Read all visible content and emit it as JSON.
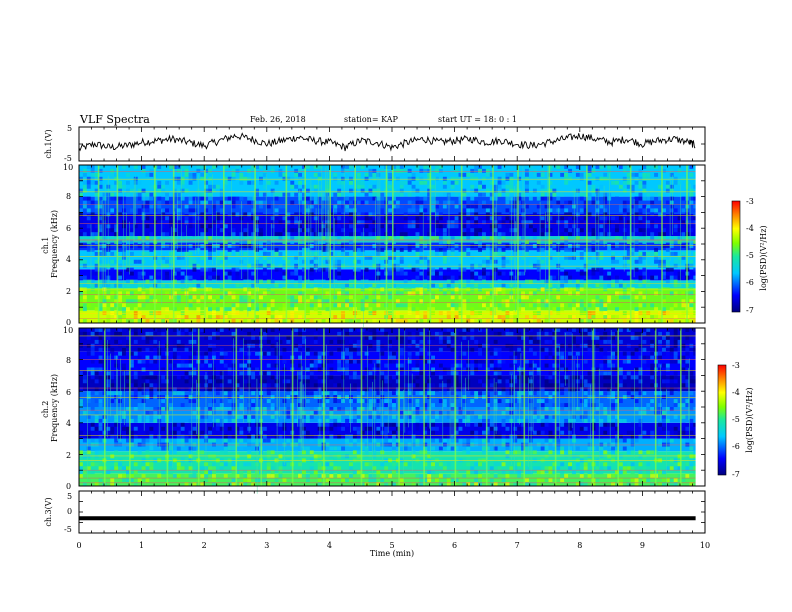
{
  "header": {
    "title": "VLF Spectra",
    "date": "Feb. 26, 2018",
    "station": "station= KAP",
    "start": "start  UT =   18: 0   : 1"
  },
  "chart_data": [
    {
      "type": "line",
      "panel": "ch1-waveform",
      "ylabel": "ch.1(V)",
      "ylim": [
        -5,
        5
      ],
      "yticks": [
        "5",
        "-5"
      ],
      "xlim": [
        0,
        10
      ],
      "color": "#000000",
      "series": [
        {
          "x": [
            0,
            0.25,
            0.5,
            0.75,
            1,
            1.25,
            1.5,
            1.75,
            2,
            2.25,
            2.5,
            2.75,
            3,
            3.25,
            3.5,
            3.75,
            4,
            4.25,
            4.5,
            4.75,
            5,
            5.25,
            5.5,
            5.75,
            6,
            6.25,
            6.5,
            6.75,
            7,
            7.25,
            7.5,
            7.75,
            8,
            8.25,
            8.5,
            8.75,
            9,
            9.25,
            9.5,
            9.75,
            9.85
          ],
          "values": [
            -1.5,
            0,
            -1,
            -0.5,
            0.5,
            1,
            1.5,
            0.5,
            -0.5,
            1,
            2.5,
            1.5,
            0,
            1,
            2,
            1,
            0.5,
            -1,
            1,
            0.5,
            -1,
            0.5,
            1.5,
            0.5,
            1,
            1.5,
            0.5,
            1,
            0,
            -0.5,
            0.5,
            1.5,
            2.5,
            1.5,
            0.5,
            1.5,
            0,
            1,
            1.5,
            0.5,
            -0.5
          ]
        }
      ]
    },
    {
      "type": "heatmap",
      "panel": "ch1-spectrogram",
      "ylabel": "ch.1\nFrequency (kHz)",
      "ylim": [
        0,
        10
      ],
      "yticks": [
        "0",
        "2",
        "4",
        "6",
        "8",
        "10"
      ],
      "xlim": [
        0,
        9.85
      ],
      "colorbar": {
        "label": "log(PSD)(V²/Hz)",
        "range": [
          -7,
          -3
        ],
        "ticks": [
          "-3",
          "-4",
          "-5",
          "-6",
          "-7"
        ]
      },
      "bands": [
        {
          "y0": 0,
          "y1": 0.8,
          "level": -4.2
        },
        {
          "y0": 0.8,
          "y1": 2.2,
          "level": -4.6
        },
        {
          "y0": 2.2,
          "y1": 2.7,
          "level": -5.4
        },
        {
          "y0": 2.7,
          "y1": 3.4,
          "level": -6.4
        },
        {
          "y0": 3.4,
          "y1": 4.6,
          "level": -5.6
        },
        {
          "y0": 4.6,
          "y1": 5.1,
          "level": -6.2
        },
        {
          "y0": 5.1,
          "y1": 5.5,
          "level": -5.3
        },
        {
          "y0": 5.5,
          "y1": 6.9,
          "level": -6.5
        },
        {
          "y0": 6.9,
          "y1": 8.0,
          "level": -6.1
        },
        {
          "y0": 8.0,
          "y1": 10,
          "level": -5.6
        }
      ],
      "lines_khz": [
        0.3,
        0.6,
        1.3,
        1.8,
        2.1,
        2.5,
        3.6,
        4.2,
        4.9,
        5.2,
        5.3,
        6.3,
        6.8,
        7.5,
        8.3,
        9.1,
        9.6
      ],
      "bursts_min": [
        0.3,
        0.6,
        1.2,
        1.5,
        2.0,
        2.3,
        2.8,
        3.3,
        3.6,
        4.0,
        4.4,
        4.9,
        5.0,
        5.6,
        6.1,
        6.6,
        7.0,
        7.5,
        8.1,
        8.8,
        9.3,
        9.7
      ]
    },
    {
      "type": "heatmap",
      "panel": "ch2-spectrogram",
      "ylabel": "ch.2\nFrequency (kHz)",
      "ylim": [
        0,
        10
      ],
      "yticks": [
        "0",
        "2",
        "4",
        "6",
        "8",
        "10"
      ],
      "xlim": [
        0,
        9.85
      ],
      "colorbar": {
        "label": "log(PSD)(V²/Hz)",
        "range": [
          -7,
          -3
        ],
        "ticks": [
          "-3",
          "-4",
          "-5",
          "-6",
          "-7"
        ]
      },
      "bands": [
        {
          "y0": 0,
          "y1": 0.8,
          "level": -4.8
        },
        {
          "y0": 0.8,
          "y1": 2.2,
          "level": -5.1
        },
        {
          "y0": 2.2,
          "y1": 3.0,
          "level": -5.7
        },
        {
          "y0": 3.0,
          "y1": 4.0,
          "level": -6.5
        },
        {
          "y0": 4.0,
          "y1": 5.0,
          "level": -5.8
        },
        {
          "y0": 5.0,
          "y1": 6.0,
          "level": -6.0
        },
        {
          "y0": 6.0,
          "y1": 7.0,
          "level": -6.7
        },
        {
          "y0": 7.0,
          "y1": 8.5,
          "level": -6.4
        },
        {
          "y0": 8.5,
          "y1": 10,
          "level": -6.6
        }
      ],
      "lines_khz": [
        0.2,
        0.5,
        1.0,
        1.6,
        1.9,
        2.6,
        3.2,
        4.5,
        4.8,
        5.6,
        6.2,
        7.3,
        8.0,
        8.9,
        9.5
      ],
      "bursts_min": [
        0.4,
        0.8,
        1.4,
        1.9,
        2.5,
        2.9,
        3.4,
        3.9,
        4.5,
        5.1,
        5.5,
        6.0,
        6.5,
        7.1,
        7.6,
        8.2,
        8.6,
        9.2,
        9.6
      ]
    },
    {
      "type": "line",
      "panel": "ch3-waveform",
      "ylabel": "ch.3(V)",
      "ylim": [
        -5,
        5
      ],
      "yticks": [
        "5",
        "0",
        "-5"
      ],
      "xlim": [
        0,
        10
      ],
      "xlabel": "Time (min)",
      "xticks": [
        "0",
        "1",
        "2",
        "3",
        "4",
        "5",
        "6",
        "7",
        "8",
        "9",
        "10"
      ],
      "color": "#000000",
      "series": [
        {
          "x": [
            0,
            9.85
          ],
          "values": [
            -1.5,
            -1.5
          ]
        }
      ]
    }
  ]
}
